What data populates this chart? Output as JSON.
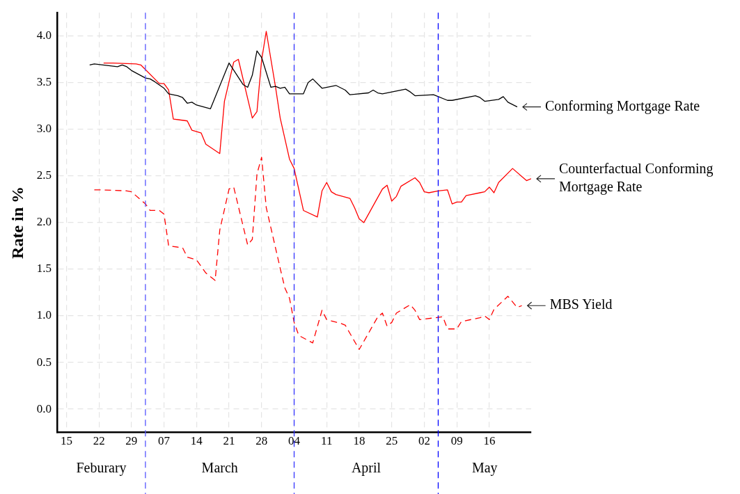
{
  "chart_data": {
    "type": "line",
    "ylabel": "Rate in %",
    "xlim": [
      "--02-13",
      "--05-25"
    ],
    "xticks": [
      {
        "value": "--02-15",
        "label": "15"
      },
      {
        "value": "--02-22",
        "label": "22"
      },
      {
        "value": "--02-29",
        "label": "29"
      },
      {
        "value": "--03-07",
        "label": "07"
      },
      {
        "value": "--03-14",
        "label": "14"
      },
      {
        "value": "--03-21",
        "label": "21"
      },
      {
        "value": "--03-28",
        "label": "28"
      },
      {
        "value": "--04-04",
        "label": "04"
      },
      {
        "value": "--04-11",
        "label": "11"
      },
      {
        "value": "--04-18",
        "label": "18"
      },
      {
        "value": "--04-25",
        "label": "25"
      },
      {
        "value": "--05-02",
        "label": "02"
      },
      {
        "value": "--05-09",
        "label": "09"
      },
      {
        "value": "--05-16",
        "label": "16"
      }
    ],
    "ylim": [
      -0.25,
      4.25
    ],
    "yticks": [
      {
        "value": 0,
        "label": "0.0"
      },
      {
        "value": 0.5,
        "label": "0.5"
      },
      {
        "value": 1,
        "label": "1.0"
      },
      {
        "value": 1.5,
        "label": "1.5"
      },
      {
        "value": 2,
        "label": "2.0"
      },
      {
        "value": 2.5,
        "label": "2.5"
      },
      {
        "value": 3,
        "label": "3.0"
      },
      {
        "value": 3.5,
        "label": "3.5"
      },
      {
        "value": 4,
        "label": "4.0"
      }
    ],
    "grid": true,
    "legend": false,
    "marker": "none",
    "series": [
      {
        "name": "Conforming Mortgage Rate",
        "color": "#000000",
        "line_style": "solid",
        "x": [
          "--02-20",
          "--02-21",
          "--02-26",
          "--02-27",
          "--02-28",
          "--02-29",
          "--03-03",
          "--03-04",
          "--03-05",
          "--03-07",
          "--03-08",
          "--03-10",
          "--03-11",
          "--03-12",
          "--03-13",
          "--03-14",
          "--03-17",
          "--03-21",
          "--03-24",
          "--03-25",
          "--03-26",
          "--03-27",
          "--03-28",
          "--03-30",
          "--03-31",
          "--04-01",
          "--04-02",
          "--04-03",
          "--04-06",
          "--04-07",
          "--04-08",
          "--04-10",
          "--04-13",
          "--04-15",
          "--04-16",
          "--04-20",
          "--04-21",
          "--04-22",
          "--04-23",
          "--04-28",
          "--04-29",
          "--04-30",
          "--05-04",
          "--05-07",
          "--05-08",
          "--05-13",
          "--05-14",
          "--05-15",
          "--05-18",
          "--05-19",
          "--05-20",
          "--05-22"
        ],
        "values": [
          3.69,
          3.7,
          3.67,
          3.69,
          3.67,
          3.63,
          3.55,
          3.54,
          3.51,
          3.44,
          3.38,
          3.36,
          3.34,
          3.28,
          3.29,
          3.26,
          3.22,
          3.71,
          3.48,
          3.45,
          3.58,
          3.84,
          3.77,
          3.45,
          3.46,
          3.44,
          3.45,
          3.38,
          3.38,
          3.5,
          3.54,
          3.44,
          3.47,
          3.42,
          3.37,
          3.39,
          3.42,
          3.39,
          3.38,
          3.43,
          3.4,
          3.36,
          3.37,
          3.31,
          3.31,
          3.36,
          3.34,
          3.3,
          3.32,
          3.35,
          3.29,
          3.24
        ]
      },
      {
        "name": "Counterfactual Conforming Mortgage Rate",
        "color": "#ff0000",
        "line_style": "solid",
        "x": [
          "--02-23",
          "--02-25",
          "--03-01",
          "--03-02",
          "--03-06",
          "--03-07",
          "--03-08",
          "--03-09",
          "--03-12",
          "--03-13",
          "--03-15",
          "--03-16",
          "--03-19",
          "--03-20",
          "--03-22",
          "--03-23",
          "--03-26",
          "--03-27",
          "--03-28",
          "--03-29",
          "--03-31",
          "--04-01",
          "--04-03",
          "--04-04",
          "--04-06",
          "--04-09",
          "--04-10",
          "--04-11",
          "--04-12",
          "--04-13",
          "--04-16",
          "--04-17",
          "--04-18",
          "--04-19",
          "--04-23",
          "--04-24",
          "--04-25",
          "--04-26",
          "--04-27",
          "--04-30",
          "--05-01",
          "--05-02",
          "--05-03",
          "--05-05",
          "--05-07",
          "--05-08",
          "--05-09",
          "--05-10",
          "--05-11",
          "--05-14",
          "--05-15",
          "--05-16",
          "--05-17",
          "--05-18",
          "--05-21",
          "--05-24",
          "--05-25"
        ],
        "values": [
          3.71,
          3.71,
          3.7,
          3.69,
          3.49,
          3.49,
          3.42,
          3.11,
          3.09,
          2.99,
          2.96,
          2.84,
          2.74,
          3.3,
          3.72,
          3.75,
          3.12,
          3.19,
          3.74,
          4.05,
          3.45,
          3.12,
          2.68,
          2.58,
          2.13,
          2.06,
          2.34,
          2.43,
          2.33,
          2.3,
          2.26,
          2.16,
          2.04,
          2.0,
          2.36,
          2.4,
          2.23,
          2.28,
          2.39,
          2.48,
          2.43,
          2.33,
          2.32,
          2.34,
          2.35,
          2.2,
          2.22,
          2.22,
          2.29,
          2.32,
          2.33,
          2.38,
          2.32,
          2.43,
          2.58,
          2.45,
          2.47
        ]
      },
      {
        "name": "MBS Yield",
        "color": "#ff0000",
        "line_style": "dashed",
        "x": [
          "--02-21",
          "--02-23",
          "--02-28",
          "--02-29",
          "--03-03",
          "--03-04",
          "--03-06",
          "--03-07",
          "--03-08",
          "--03-11",
          "--03-12",
          "--03-14",
          "--03-16",
          "--03-18",
          "--03-19",
          "--03-21",
          "--03-22",
          "--03-25",
          "--03-26",
          "--03-27",
          "--03-28",
          "--03-29",
          "--04-01",
          "--04-02",
          "--04-03",
          "--04-04",
          "--04-05",
          "--04-08",
          "--04-10",
          "--04-11",
          "--04-14",
          "--04-15",
          "--04-18",
          "--04-22",
          "--04-23",
          "--04-24",
          "--04-25",
          "--04-26",
          "--04-29",
          "--04-30",
          "--05-01",
          "--05-06",
          "--05-07",
          "--05-09",
          "--05-10",
          "--05-14",
          "--05-15",
          "--05-16",
          "--05-17",
          "--05-20",
          "--05-22",
          "--05-23"
        ],
        "values": [
          2.35,
          2.35,
          2.34,
          2.33,
          2.2,
          2.13,
          2.13,
          2.09,
          1.75,
          1.73,
          1.63,
          1.6,
          1.46,
          1.38,
          1.92,
          2.36,
          2.38,
          1.76,
          1.82,
          2.52,
          2.7,
          2.16,
          1.51,
          1.3,
          1.19,
          0.93,
          0.79,
          0.71,
          1.06,
          0.96,
          0.92,
          0.9,
          0.64,
          0.99,
          1.03,
          0.89,
          0.93,
          1.03,
          1.12,
          1.06,
          0.96,
          0.99,
          0.86,
          0.86,
          0.94,
          0.98,
          1.0,
          0.96,
          1.07,
          1.21,
          1.09,
          1.11
        ]
      }
    ],
    "ref_lines": [
      {
        "axis": "x",
        "value": "--03-03",
        "color": "#5555ff",
        "line_style": "dashed"
      },
      {
        "axis": "x",
        "value": "--04-04",
        "color": "#3333ff",
        "line_style": "dashed"
      },
      {
        "axis": "x",
        "value": "--05-05",
        "color": "#0000ff",
        "line_style": "dashed"
      }
    ],
    "annotations": [
      "Feburary",
      "March",
      "April",
      "May"
    ]
  }
}
